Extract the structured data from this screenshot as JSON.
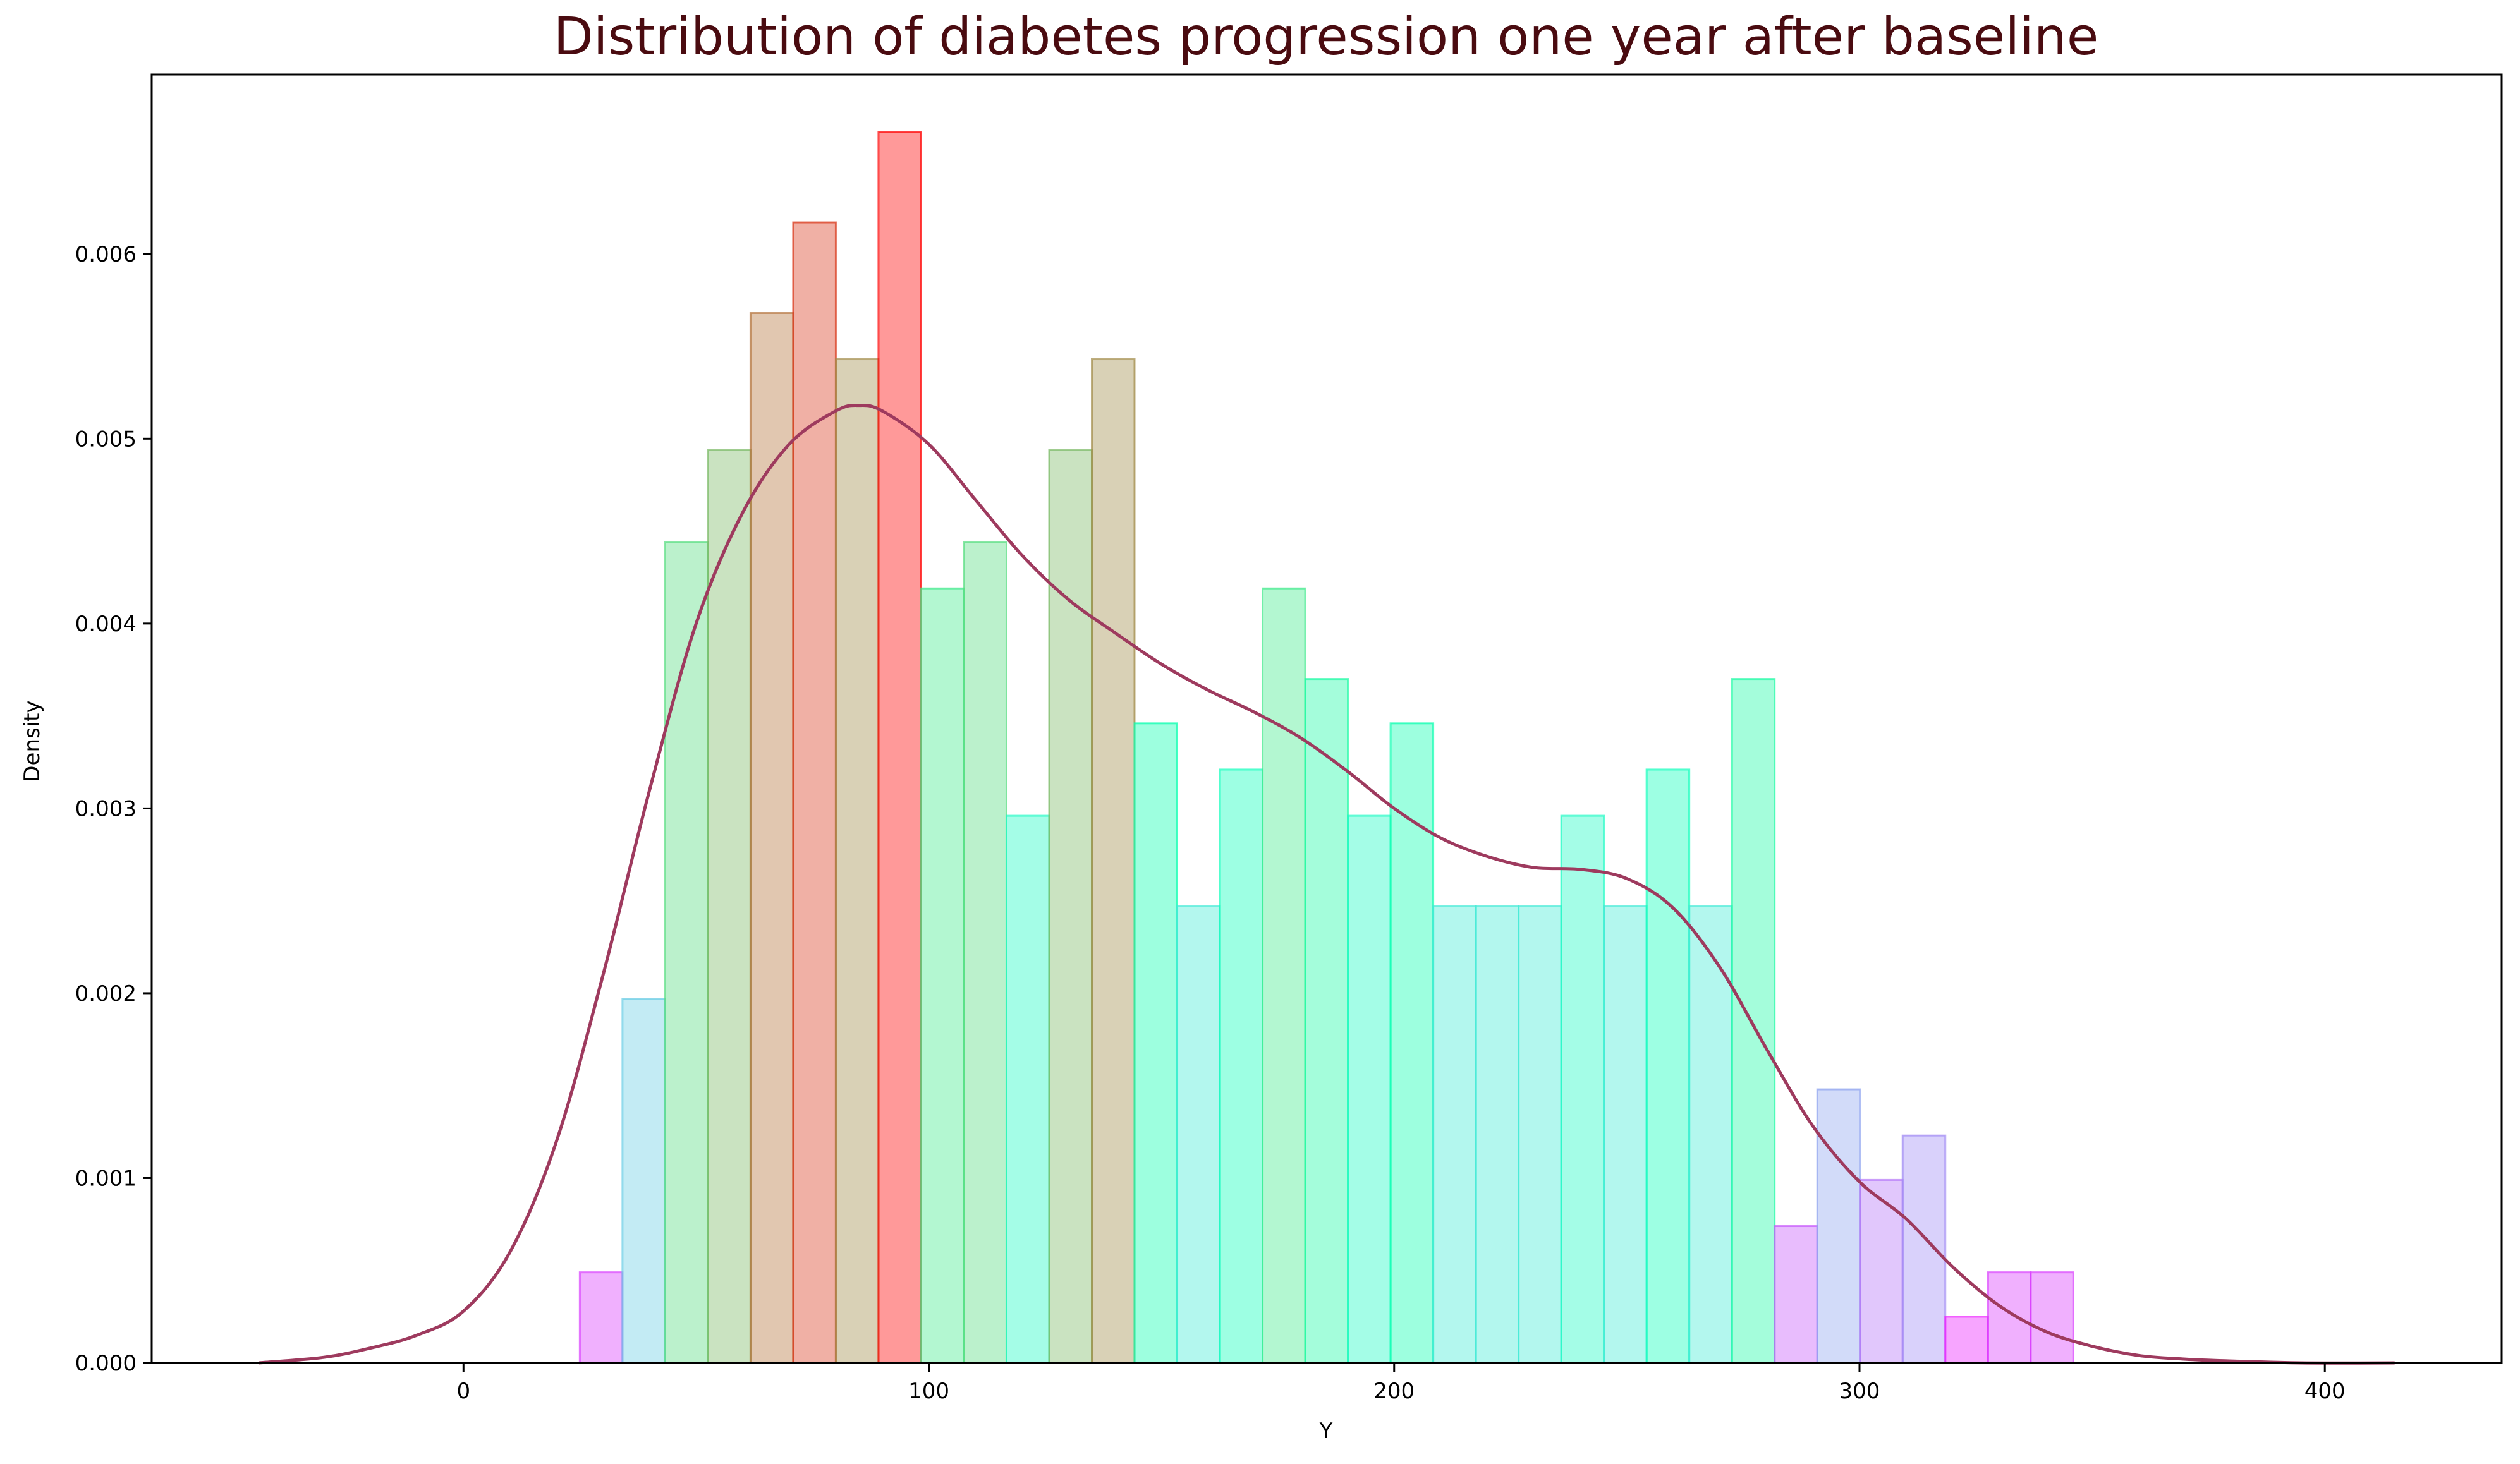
{
  "chart_data": {
    "type": "bar",
    "subtype": "histogram-with-kde",
    "title": "Distribution of diabetes progression one year after baseline",
    "xlabel": "Y",
    "ylabel": "Density",
    "xlim": [
      -67,
      438
    ],
    "ylim": [
      0,
      0.00697
    ],
    "xticks": [
      0,
      100,
      200,
      300,
      400
    ],
    "xtick_labels": [
      "0",
      "100",
      "200",
      "300",
      "400"
    ],
    "yticks": [
      0,
      0.001,
      0.002,
      0.003,
      0.004,
      0.005,
      0.006
    ],
    "ytick_labels": [
      "0.000",
      "0.001",
      "0.002",
      "0.003",
      "0.004",
      "0.005",
      "0.006"
    ],
    "grid": false,
    "legend": "none",
    "colormap": "rainbow (bar color scaled by bar height)",
    "bins": {
      "start": 25,
      "width": 9.17,
      "values": [
        0.00049,
        0.00197,
        0.00444,
        0.00494,
        0.00568,
        0.00617,
        0.00543,
        0.00666,
        0.00419,
        0.00444,
        0.00296,
        0.00494,
        0.00543,
        0.00346,
        0.00247,
        0.00321,
        0.00419,
        0.0037,
        0.00296,
        0.00346,
        0.00247,
        0.00247,
        0.00247,
        0.00296,
        0.00247,
        0.00321,
        0.00247,
        0.0037,
        0.00074,
        0.00148,
        0.00099,
        0.00123,
        0.00025,
        0.00049,
        0.00049
      ]
    },
    "kde_curve": {
      "color": "#9e3a5e",
      "x": [
        -44,
        -30,
        -20,
        -10,
        0,
        10,
        20,
        30,
        40,
        50,
        60,
        70,
        80,
        85,
        90,
        100,
        110,
        120,
        130,
        140,
        150,
        160,
        170,
        180,
        190,
        200,
        210,
        220,
        230,
        240,
        250,
        260,
        270,
        280,
        290,
        300,
        310,
        320,
        330,
        340,
        350,
        360,
        370,
        380,
        395,
        415
      ],
      "y": [
        0.0,
        3e-05,
        8e-05,
        0.00015,
        0.00028,
        0.0006,
        0.0012,
        0.0021,
        0.0031,
        0.004,
        0.0046,
        0.00497,
        0.00515,
        0.00518,
        0.00515,
        0.00497,
        0.00467,
        0.00437,
        0.00413,
        0.00395,
        0.00378,
        0.00364,
        0.00352,
        0.00338,
        0.0032,
        0.003,
        0.00284,
        0.00274,
        0.00268,
        0.00267,
        0.00262,
        0.00246,
        0.00214,
        0.0017,
        0.00128,
        0.00098,
        0.00078,
        0.00052,
        0.00031,
        0.00017,
        9e-05,
        4e-05,
        2e-05,
        1e-05,
        0.0,
        0.0
      ]
    }
  }
}
